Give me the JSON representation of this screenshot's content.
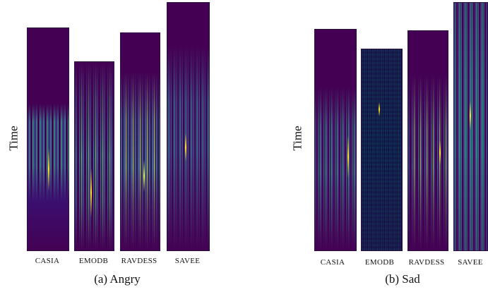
{
  "figure": {
    "y_axis_label": "Time",
    "panels": [
      {
        "caption": "(a) Angry",
        "spectrograms": [
          {
            "label": "CASIA"
          },
          {
            "label": "EMODB"
          },
          {
            "label": "RAVDESS"
          },
          {
            "label": "SAVEE"
          }
        ]
      },
      {
        "caption": "(b) Sad",
        "spectrograms": [
          {
            "label": "CASIA"
          },
          {
            "label": "EMODB"
          },
          {
            "label": "RAVDESS"
          },
          {
            "label": "SAVEE"
          }
        ]
      }
    ],
    "colormap": [
      "#440154",
      "#3e4a89",
      "#21918c",
      "#35b779",
      "#fde725"
    ]
  }
}
